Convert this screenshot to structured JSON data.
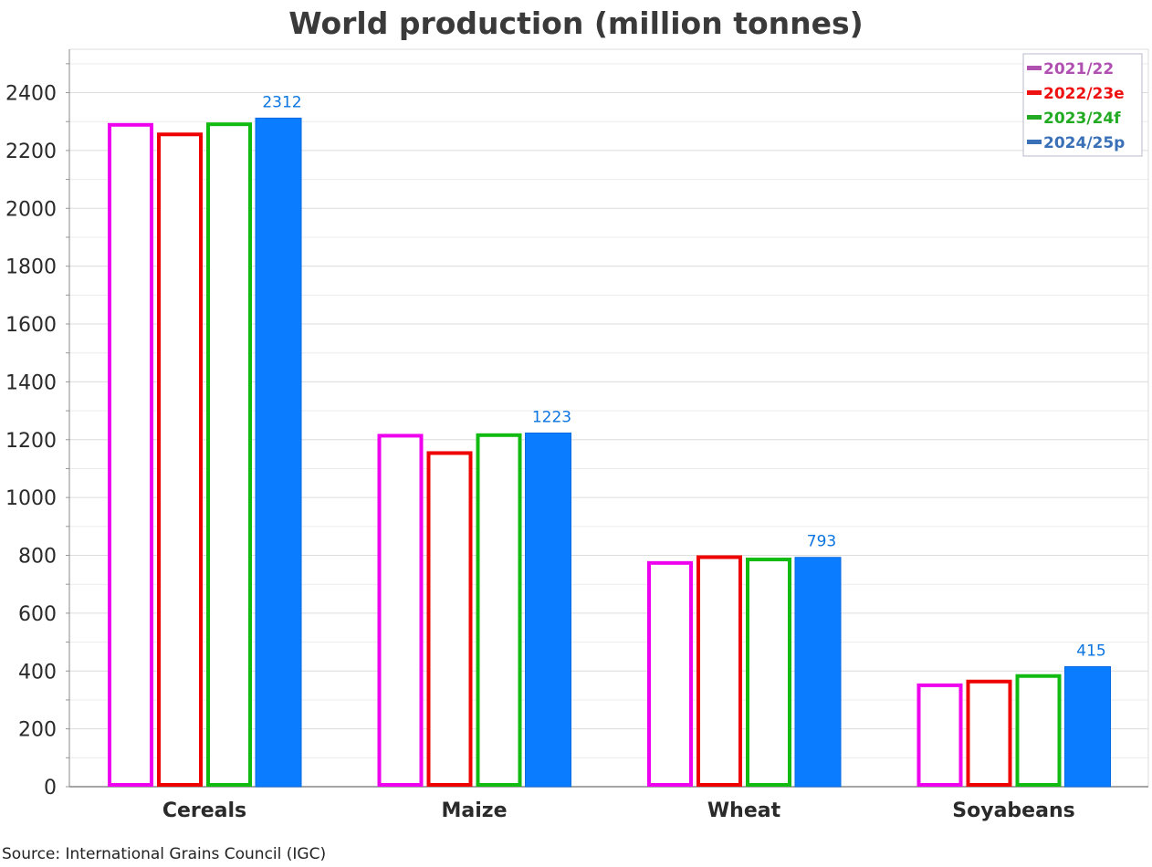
{
  "chart_data": {
    "type": "bar",
    "title": "World production (million tonnes)",
    "xlabel": "",
    "ylabel": "",
    "ylim": [
      0,
      2550
    ],
    "yticks": [
      0,
      200,
      400,
      600,
      800,
      1000,
      1200,
      1400,
      1600,
      1800,
      2000,
      2200,
      2400
    ],
    "grid": true,
    "legend_position": "top-right",
    "categories": [
      "Cereals",
      "Maize",
      "Wheat",
      "Soyabeans"
    ],
    "series": [
      {
        "name": "2021/22",
        "values": [
          2295,
          1220,
          780,
          357
        ],
        "color": "#ee00ee",
        "legend_color": "#b050b0",
        "style": "outline"
      },
      {
        "name": "2022/23e",
        "values": [
          2262,
          1160,
          800,
          370
        ],
        "color": "#ee0000",
        "legend_color": "#ee1111",
        "style": "outline"
      },
      {
        "name": "2023/24f",
        "values": [
          2297,
          1222,
          792,
          389
        ],
        "color": "#11bb11",
        "legend_color": "#22aa22",
        "style": "outline"
      },
      {
        "name": "2024/25p",
        "values": [
          2312,
          1223,
          793,
          415
        ],
        "color": "#0a7cff",
        "legend_color": "#3a70b8",
        "style": "filled",
        "data_labels": [
          "2312",
          "1223",
          "793",
          "415"
        ]
      }
    ],
    "source": "Source: International Grains Council (IGC)"
  }
}
